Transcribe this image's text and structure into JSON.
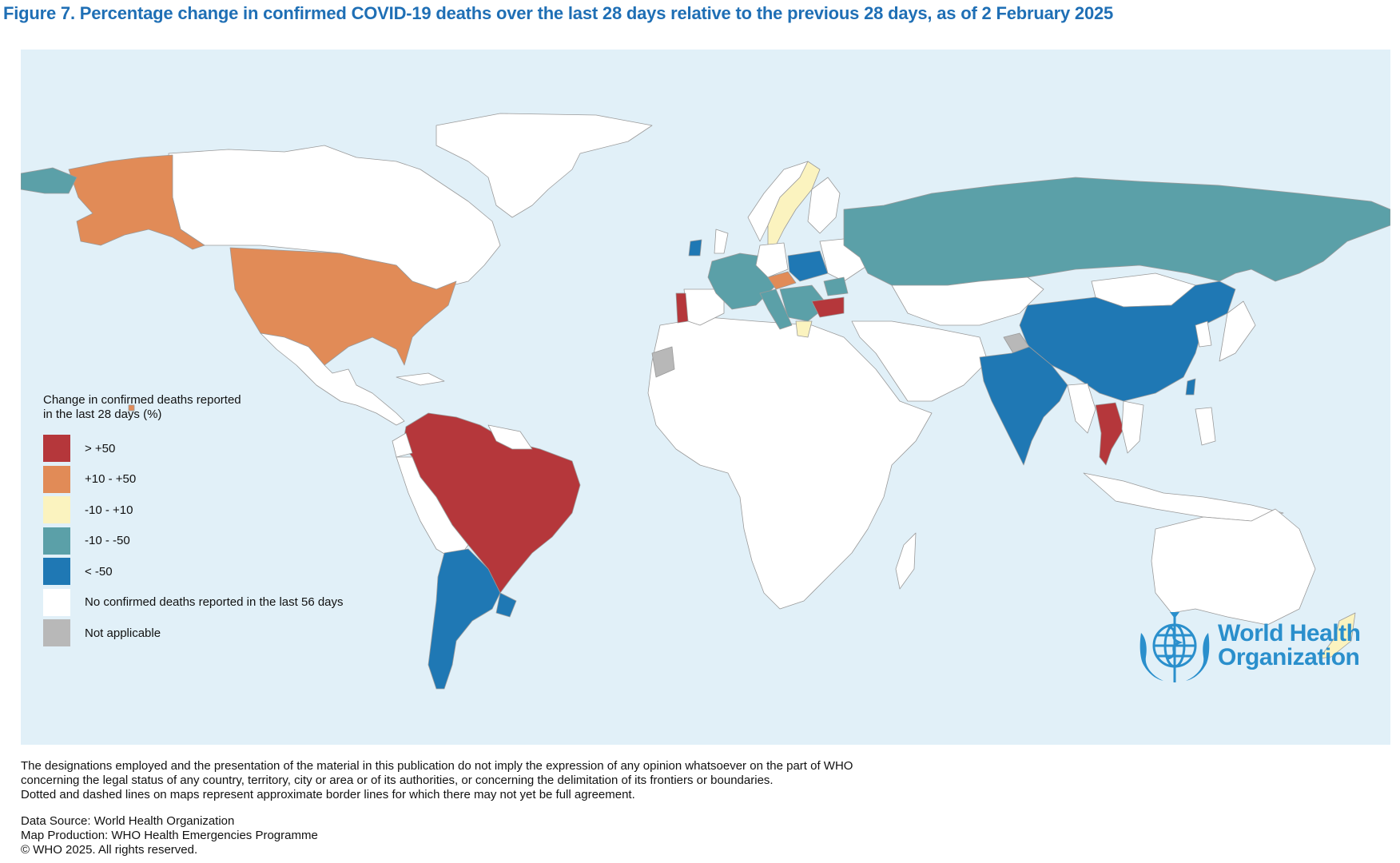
{
  "figure": {
    "title": "Figure 7. Percentage change in confirmed COVID-19 deaths over the last 28 days relative to the previous 28 days, as of 2 February 2025"
  },
  "colors": {
    "ocean": "#e1f0f8",
    "land_no_data": "#ffffff",
    "border": "#9a9a9a",
    "gt_plus50": "#b5373b",
    "plus10_plus50": "#e18b57",
    "minus10_plus10": "#fbf3bf",
    "minus10_minus50": "#5ba0a8",
    "lt_minus50": "#1f78b4",
    "not_applicable": "#b8b8b8",
    "who_blue": "#2a8fcc",
    "title_blue": "#1f6fb5"
  },
  "legend": {
    "title_line1": "Change in confirmed deaths reported",
    "title_line2": "in the last 28 days (%)",
    "items": [
      {
        "label": "> +50",
        "color": "#b5373b"
      },
      {
        "label": "+10 - +50",
        "color": "#e18b57"
      },
      {
        "label": "-10 - +10",
        "color": "#fbf3bf"
      },
      {
        "label": "-10 - -50",
        "color": "#5ba0a8"
      },
      {
        "label": "< -50",
        "color": "#1f78b4"
      },
      {
        "label": "No confirmed deaths reported in the last 56 days",
        "color": "#ffffff"
      },
      {
        "label": "Not applicable",
        "color": "#b8b8b8"
      }
    ]
  },
  "logo": {
    "line1": "World Health",
    "line2": "Organization",
    "emblem_icon": "who-emblem-icon"
  },
  "disclaimer": {
    "line1": "The designations employed and the presentation of the material in this publication do not imply the expression of any opinion whatsoever on the part of WHO",
    "line2": "concerning the legal status of any country, territory, city or area or of its authorities, or concerning the delimitation of its frontiers or boundaries.",
    "line3": "Dotted and dashed lines on maps represent approximate border lines for which there may not yet be full agreement."
  },
  "credits": {
    "source": "Data Source: World Health Organization",
    "production": "Map Production: WHO Health Emergencies Programme",
    "copyright": "© WHO 2025. All rights reserved."
  }
}
